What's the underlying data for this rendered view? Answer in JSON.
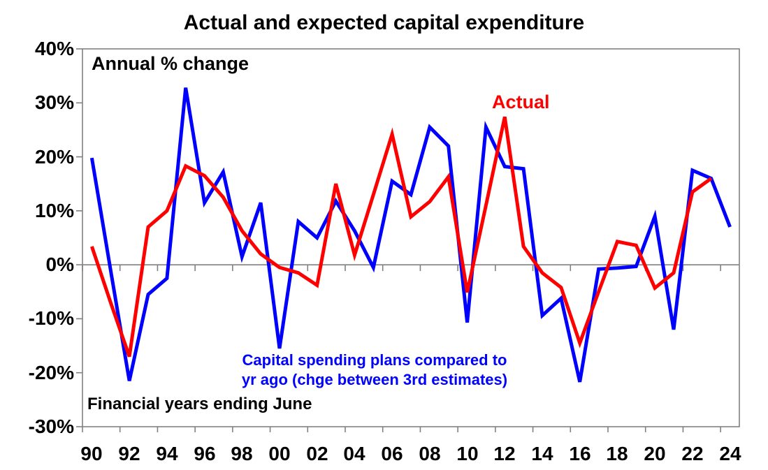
{
  "chart_data": {
    "type": "line",
    "title": "Actual and expected capital expenditure",
    "inner_label": "Annual % change",
    "footnote": "Financial years ending June",
    "labels": {
      "actual": "Actual",
      "plans_line1": "Capital spending plans compared to",
      "plans_line2": "yr ago (chge between 3rd estimates)"
    },
    "xlabel": "",
    "ylabel": "Annual % change",
    "ylim": [
      -30,
      40
    ],
    "y_step": 10,
    "grid": "zero-line-only",
    "legend_position": "inline-annotations",
    "y_tick_labels": [
      "40%",
      "30%",
      "20%",
      "10%",
      "0%",
      "-10%",
      "-20%",
      "-30%"
    ],
    "x_tick_labels": [
      "90",
      "92",
      "94",
      "96",
      "98",
      "00",
      "02",
      "04",
      "06",
      "08",
      "10",
      "12",
      "14",
      "16",
      "18",
      "20",
      "22",
      "24"
    ],
    "years": [
      1990,
      1991,
      1992,
      1993,
      1994,
      1995,
      1996,
      1997,
      1998,
      1999,
      2000,
      2001,
      2002,
      2003,
      2004,
      2005,
      2006,
      2007,
      2008,
      2009,
      2010,
      2011,
      2012,
      2013,
      2014,
      2015,
      2016,
      2017,
      2018,
      2019,
      2020,
      2021,
      2022,
      2023,
      2024
    ],
    "series": [
      {
        "name": "Capital spending plans compared to yr ago (chge between 3rd estimates)",
        "color": "#0000ff",
        "values": [
          19.8,
          -1.0,
          -21.5,
          -5.5,
          -2.5,
          32.8,
          11.5,
          17.2,
          1.5,
          11.5,
          -15.5,
          8.0,
          5.0,
          11.8,
          6.3,
          -0.5,
          15.5,
          13.0,
          25.5,
          22.0,
          -10.7,
          25.5,
          18.2,
          17.8,
          -9.4,
          -6.2,
          -21.7,
          -0.8,
          -0.6,
          -0.3,
          9.0,
          -12.0,
          17.5,
          16.0,
          7.0
        ]
      },
      {
        "name": "Actual",
        "color": "#ff0000",
        "values": [
          3.4,
          -7.0,
          -17.0,
          7.0,
          10.0,
          18.3,
          16.5,
          12.5,
          6.3,
          2.0,
          -0.5,
          -1.5,
          -3.8,
          15.0,
          1.8,
          13.0,
          24.2,
          8.9,
          11.7,
          16.3,
          -5.1,
          11.0,
          27.4,
          3.4,
          -1.5,
          -4.2,
          -14.5,
          -5.0,
          4.3,
          3.6,
          -4.3,
          -1.5,
          13.5,
          16.0,
          null
        ]
      }
    ],
    "axis_color": "#808080",
    "text_color": "#000000",
    "background_color": "#ffffff"
  }
}
